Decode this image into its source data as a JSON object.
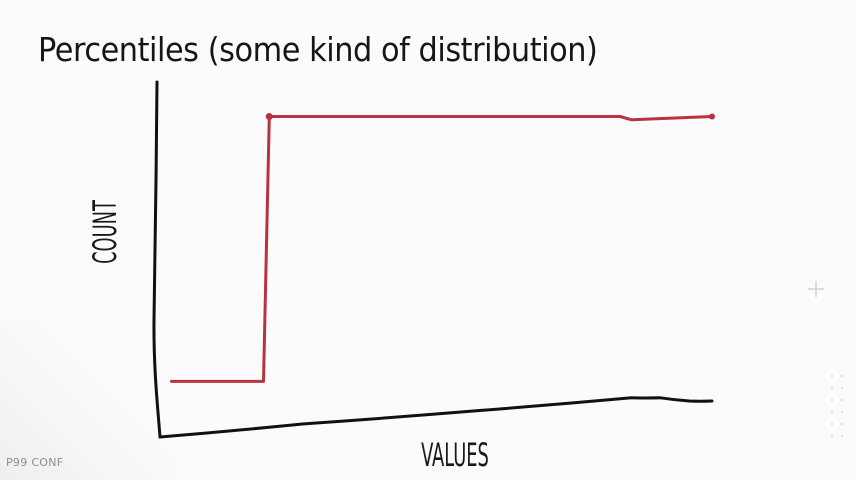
{
  "slide": {
    "title": "Percentiles (some kind of distribution)",
    "brand": "P99 CONF"
  },
  "icons": {
    "plus": "plus-icon",
    "dots": "dot-grid-icon"
  },
  "colors": {
    "background": "#fbfbfb",
    "axis": "#111111",
    "percentile_line": "#b8323f",
    "distribution_line": "#111111"
  },
  "chart_data": {
    "type": "line",
    "hand_drawn": true,
    "xlabel": "VALUES",
    "ylabel": "COUNT",
    "axis_ticks": false,
    "grid": false,
    "series": [
      {
        "color": "#b8323f",
        "points": [
          [
            0.02,
            0.17
          ],
          [
            0.18,
            0.17
          ],
          [
            0.19,
            0.98
          ],
          [
            0.8,
            0.98
          ],
          [
            0.82,
            0.97
          ],
          [
            0.96,
            0.98
          ]
        ]
      },
      {
        "color": "#111111",
        "points": [
          [
            0.0,
            0.0
          ],
          [
            0.25,
            0.04
          ],
          [
            0.55,
            0.08
          ],
          [
            0.82,
            0.12
          ],
          [
            0.87,
            0.12
          ],
          [
            0.92,
            0.11
          ],
          [
            0.96,
            0.11
          ]
        ]
      }
    ]
  }
}
